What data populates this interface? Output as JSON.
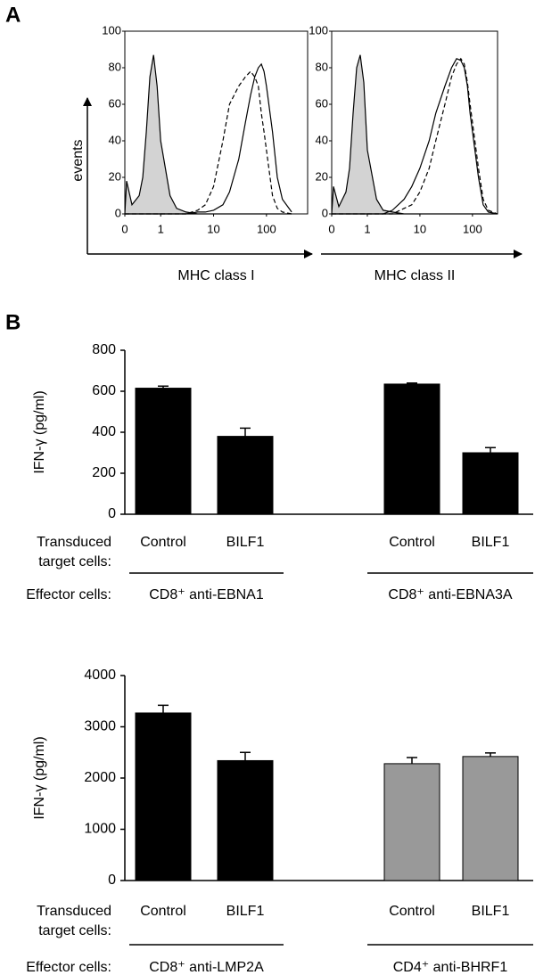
{
  "panel_labels": [
    "A",
    "B"
  ],
  "chart_data": [
    {
      "type": "line",
      "ylabel": "events",
      "xlabel": "MHC class I",
      "xscale": "symlog",
      "xlim": [
        0,
        600
      ],
      "xticks": [
        0,
        1,
        10,
        100
      ],
      "ylim": [
        0,
        100
      ],
      "yticks": [
        0,
        20,
        40,
        60,
        80,
        100
      ],
      "x": [
        0,
        0.05,
        0.2,
        0.4,
        0.5,
        0.6,
        0.7,
        0.8,
        0.9,
        1,
        1.5,
        2,
        3,
        5,
        7,
        10,
        15,
        20,
        30,
        40,
        50,
        60,
        70,
        80,
        90,
        100,
        130,
        160,
        200,
        300
      ],
      "series": [
        {
          "color": "#000000",
          "fill": "#d3d3d3",
          "dash": false,
          "values": [
            0,
            18,
            5,
            10,
            20,
            45,
            75,
            87,
            70,
            40,
            10,
            3,
            1,
            0,
            0,
            0,
            0,
            0,
            0,
            0,
            0,
            0,
            0,
            0,
            0,
            0,
            0,
            0,
            0,
            0
          ]
        },
        {
          "color": "#000000",
          "dash": false,
          "values": [
            0,
            0,
            0,
            0,
            0,
            0,
            0,
            0,
            0,
            0,
            0,
            0,
            0,
            1,
            1,
            2,
            5,
            12,
            30,
            50,
            65,
            75,
            80,
            82,
            78,
            70,
            45,
            20,
            8,
            1
          ]
        },
        {
          "color": "#000000",
          "dash": true,
          "values": [
            0,
            0,
            0,
            0,
            0,
            0,
            0,
            0,
            0,
            0,
            0,
            0,
            0,
            2,
            5,
            15,
            40,
            60,
            70,
            75,
            78,
            75,
            70,
            55,
            45,
            35,
            10,
            3,
            1,
            0
          ]
        }
      ]
    },
    {
      "type": "line",
      "xlabel": "MHC class II",
      "xscale": "symlog",
      "xlim": [
        0,
        300
      ],
      "xticks": [
        0,
        1,
        10,
        100
      ],
      "ylim": [
        0,
        100
      ],
      "yticks": [
        0,
        20,
        40,
        60,
        80,
        100
      ],
      "x": [
        0,
        0.05,
        0.2,
        0.4,
        0.5,
        0.6,
        0.7,
        0.8,
        0.9,
        1,
        1.5,
        2,
        3,
        5,
        7,
        10,
        15,
        20,
        30,
        40,
        50,
        60,
        70,
        80,
        90,
        100,
        130,
        160,
        200,
        300
      ],
      "series": [
        {
          "color": "#000000",
          "fill": "#d3d3d3",
          "dash": false,
          "values": [
            0,
            15,
            4,
            12,
            25,
            55,
            80,
            87,
            72,
            35,
            8,
            2,
            1,
            0,
            0,
            0,
            0,
            0,
            0,
            0,
            0,
            0,
            0,
            0,
            0,
            0,
            0,
            0,
            0,
            0
          ]
        },
        {
          "color": "#000000",
          "dash": false,
          "values": [
            0,
            0,
            0,
            0,
            0,
            0,
            0,
            0,
            0,
            0,
            0,
            0,
            2,
            8,
            15,
            25,
            40,
            55,
            70,
            80,
            85,
            84,
            80,
            70,
            55,
            45,
            20,
            5,
            1,
            0
          ]
        },
        {
          "color": "#000000",
          "dash": true,
          "values": [
            0,
            0,
            0,
            0,
            0,
            0,
            0,
            0,
            0,
            0,
            0,
            0,
            0,
            3,
            5,
            12,
            25,
            40,
            60,
            75,
            82,
            85,
            82,
            72,
            60,
            50,
            25,
            8,
            2,
            0
          ]
        }
      ]
    },
    {
      "type": "bar",
      "ylabel": "IFN-γ (pg/ml)",
      "ylim": [
        0,
        800
      ],
      "yticks": [
        0,
        200,
        400,
        600,
        800
      ],
      "categories": [
        "Control",
        "BILF1",
        "Control",
        "BILF1"
      ],
      "values": [
        615,
        380,
        635,
        300
      ],
      "errors": [
        10,
        40,
        5,
        25
      ],
      "colors": [
        "#000000",
        "#000000",
        "#000000",
        "#000000"
      ],
      "row_labels": {
        "transduced": [
          "Transduced",
          "target cells:"
        ],
        "effector": "Effector cells:"
      },
      "groups": [
        "CD8⁺ anti-EBNA1",
        "CD8⁺ anti-EBNA3A"
      ]
    },
    {
      "type": "bar",
      "ylabel": "IFN-γ (pg/ml)",
      "ylim": [
        0,
        4000
      ],
      "yticks": [
        0,
        1000,
        2000,
        3000,
        4000
      ],
      "categories": [
        "Control",
        "BILF1",
        "Control",
        "BILF1"
      ],
      "values": [
        3270,
        2340,
        2280,
        2420
      ],
      "errors": [
        150,
        160,
        120,
        70
      ],
      "colors": [
        "#000000",
        "#000000",
        "#999999",
        "#999999"
      ],
      "row_labels": {
        "transduced": [
          "Transduced",
          "target cells:"
        ],
        "effector": "Effector cells:"
      },
      "groups": [
        "CD8⁺ anti-LMP2A",
        "CD4⁺ anti-BHRF1"
      ]
    }
  ]
}
